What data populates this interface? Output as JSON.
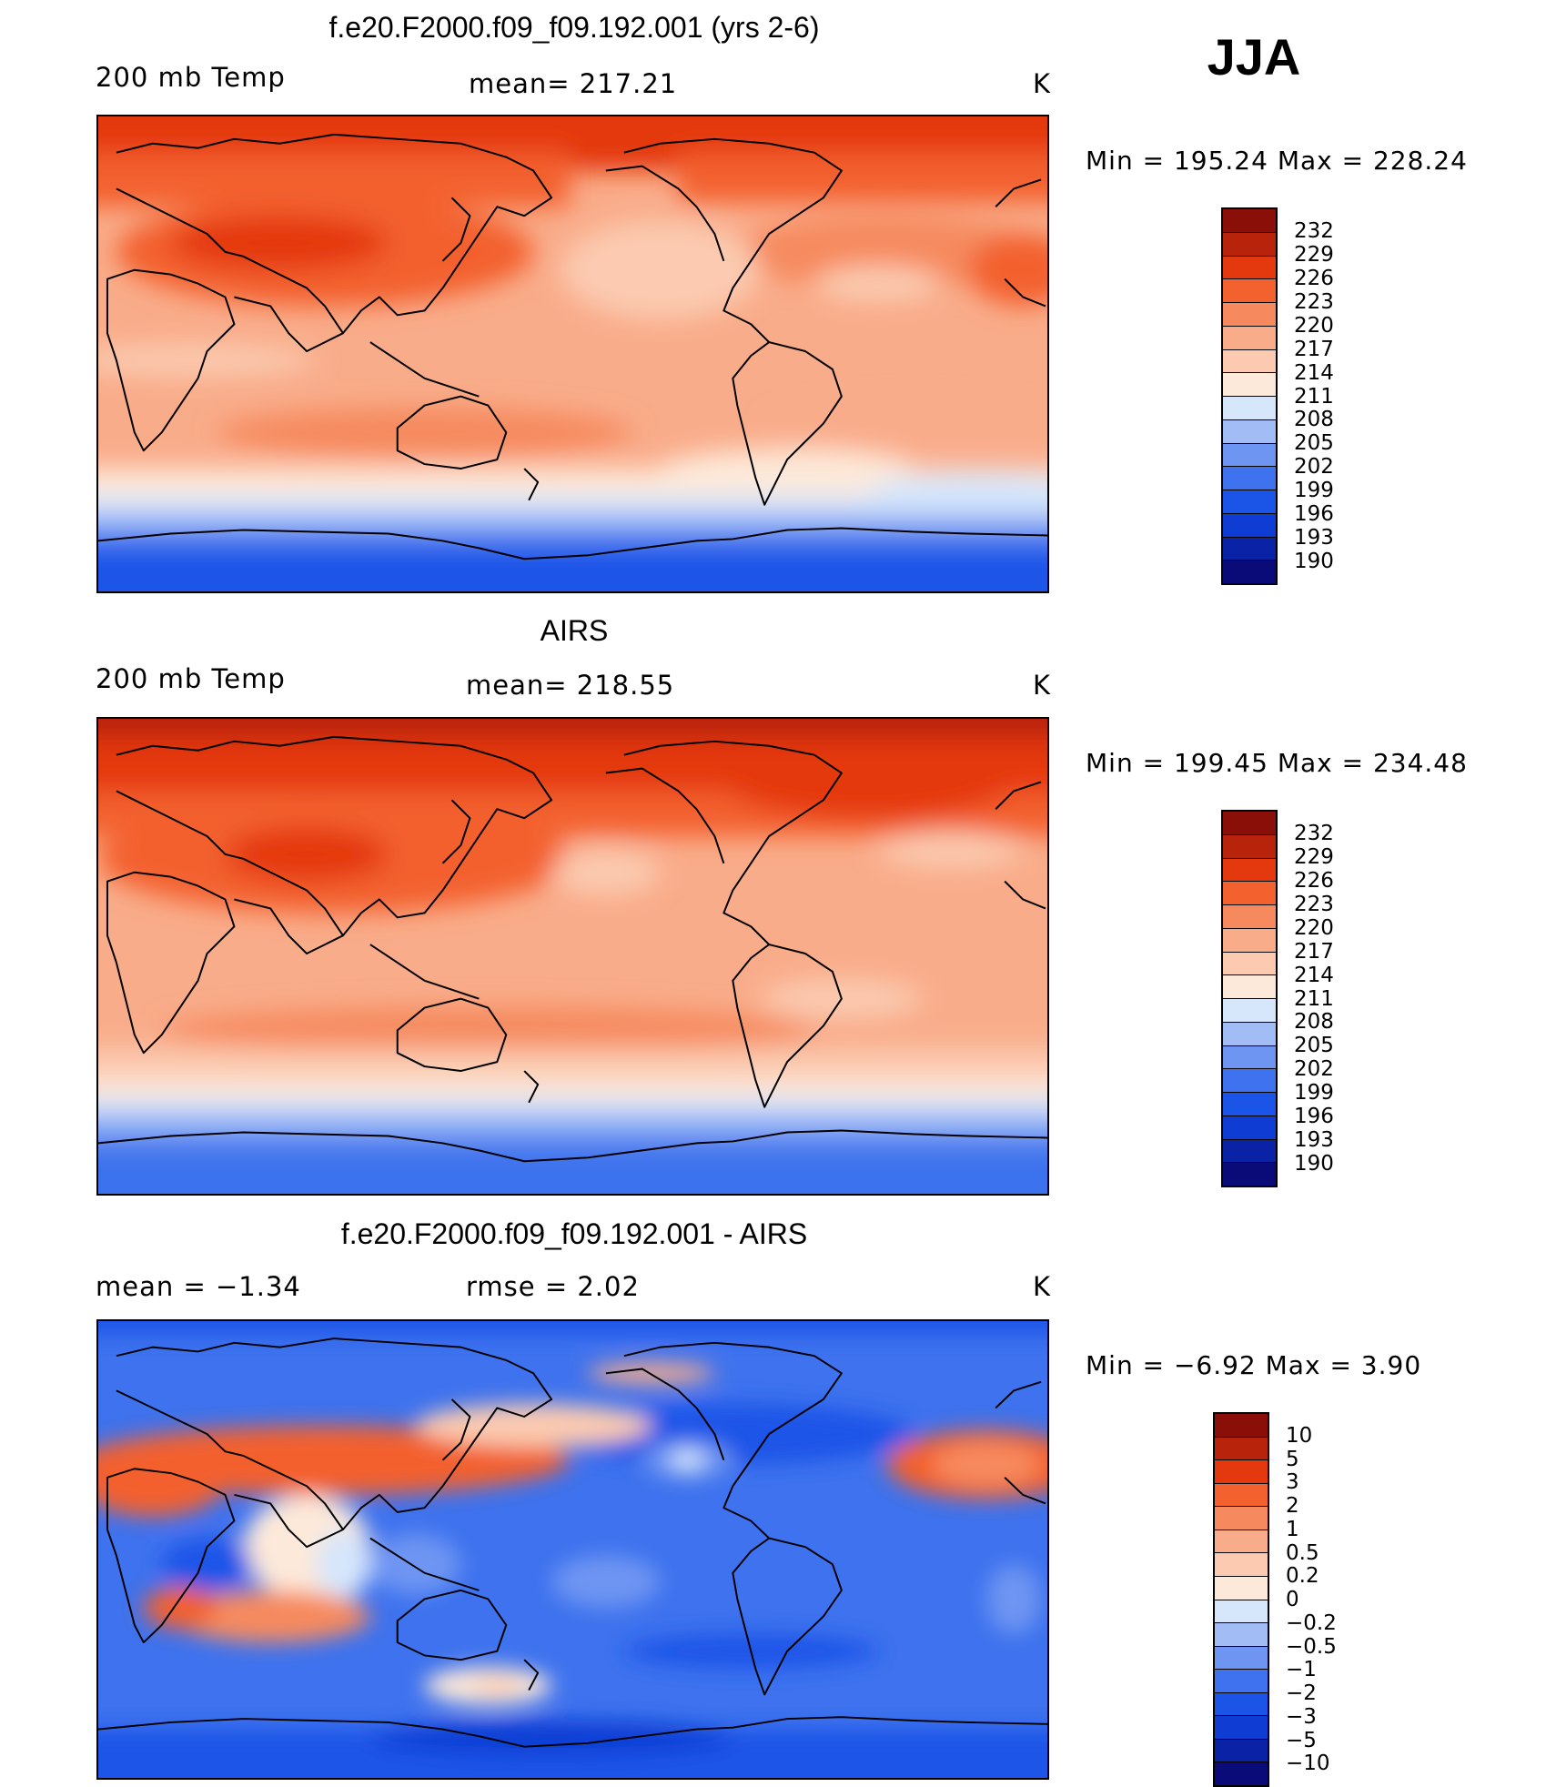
{
  "season": "JJA",
  "units": "K",
  "colors": {
    "abs_palette": [
      "#0a0a78",
      "#0a23a6",
      "#0f3dd4",
      "#1a55e8",
      "#3e72ee",
      "#6e95f2",
      "#a2bdf6",
      "#d6e6fb",
      "#fde9d9",
      "#fbcab0",
      "#f9ac8a",
      "#f68a5e",
      "#f3612f",
      "#e4380f",
      "#b8230b",
      "#8a0f08"
    ],
    "diff_palette": [
      "#0a0a78",
      "#0a23a6",
      "#0f3dd4",
      "#1a55e8",
      "#3e72ee",
      "#6e95f2",
      "#a2bdf6",
      "#d6e6fb",
      "#fde9d9",
      "#fbcab0",
      "#f9ac8a",
      "#f68a5e",
      "#f3612f",
      "#e4380f",
      "#b8230b",
      "#8a0f08"
    ]
  },
  "panels": [
    {
      "title": "f.e20.F2000.f09_f09.192.001 (yrs 2-6)",
      "left_label": "200 mb Temp",
      "center_label": "mean=  217.21",
      "right_label": "K",
      "min_max": "Min  =  195.24  Max  =  228.24"
    },
    {
      "title": "AIRS",
      "left_label": "200 mb Temp",
      "center_label": "mean=  218.55",
      "right_label": "K",
      "min_max": "Min  =  199.45  Max  =  234.48"
    },
    {
      "title": "f.e20.F2000.f09_f09.192.001 - AIRS",
      "left_label": "mean  =     −1.34",
      "center_label": "rmse  =     2.02",
      "right_label": "K",
      "min_max": "Min  =    −6.92  Max  =      3.90"
    }
  ],
  "chart_data": [
    {
      "type": "heatmap",
      "title": "f.e20.F2000.f09_f09.192.001 (yrs 2-6)",
      "variable": "200 mb Temp",
      "units": "K",
      "mean": 217.21,
      "min": 195.24,
      "max": 228.24,
      "colorbar_levels": [
        232,
        229,
        226,
        223,
        220,
        217,
        214,
        211,
        208,
        205,
        202,
        199,
        196,
        193,
        190
      ],
      "colorbar_labels": [
        "232",
        "229",
        "226",
        "223",
        "220",
        "217",
        "214",
        "211",
        "208",
        "205",
        "202",
        "199",
        "196",
        "193",
        "190"
      ]
    },
    {
      "type": "heatmap",
      "title": "AIRS",
      "variable": "200 mb Temp",
      "units": "K",
      "mean": 218.55,
      "min": 199.45,
      "max": 234.48,
      "colorbar_levels": [
        232,
        229,
        226,
        223,
        220,
        217,
        214,
        211,
        208,
        205,
        202,
        199,
        196,
        193,
        190
      ],
      "colorbar_labels": [
        "232",
        "229",
        "226",
        "223",
        "220",
        "217",
        "214",
        "211",
        "208",
        "205",
        "202",
        "199",
        "196",
        "193",
        "190"
      ]
    },
    {
      "type": "heatmap",
      "title": "f.e20.F2000.f09_f09.192.001 - AIRS",
      "units": "K",
      "mean": -1.34,
      "rmse": 2.02,
      "min": -6.92,
      "max": 3.9,
      "colorbar_levels": [
        10,
        5,
        3,
        2,
        1,
        0.5,
        0.2,
        0,
        -0.2,
        -0.5,
        -1,
        -2,
        -3,
        -5,
        -10
      ],
      "colorbar_labels": [
        "10",
        "5",
        "3",
        "2",
        "1",
        "0.5",
        "0.2",
        "0",
        "−0.2",
        "−0.5",
        "−1",
        "−2",
        "−3",
        "−5",
        "−10"
      ]
    }
  ]
}
